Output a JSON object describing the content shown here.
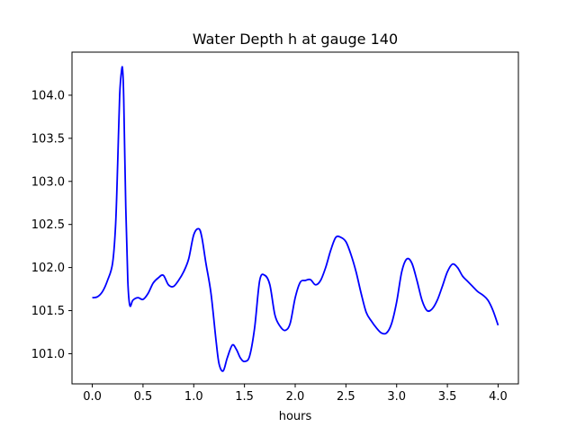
{
  "chart_data": {
    "type": "line",
    "title": "Water Depth h at gauge 140",
    "xlabel": "hours",
    "ylabel": "",
    "xlim": [
      -0.2,
      4.2
    ],
    "ylim": [
      100.65,
      104.5
    ],
    "xticks": [
      0.0,
      0.5,
      1.0,
      1.5,
      2.0,
      2.5,
      3.0,
      3.5,
      4.0
    ],
    "xtick_labels": [
      "0.0",
      "0.5",
      "1.0",
      "1.5",
      "2.0",
      "2.5",
      "3.0",
      "3.5",
      "4.0"
    ],
    "yticks": [
      101.0,
      101.5,
      102.0,
      102.5,
      103.0,
      103.5,
      104.0
    ],
    "ytick_labels": [
      "101.0",
      "101.5",
      "102.0",
      "102.5",
      "103.0",
      "103.5",
      "104.0"
    ],
    "grid": false,
    "series": [
      {
        "color": "#0000ff",
        "x": [
          0.0,
          0.05,
          0.1,
          0.15,
          0.2,
          0.23,
          0.25,
          0.27,
          0.29,
          0.3,
          0.31,
          0.33,
          0.35,
          0.37,
          0.4,
          0.45,
          0.5,
          0.55,
          0.6,
          0.65,
          0.7,
          0.75,
          0.8,
          0.85,
          0.9,
          0.95,
          1.0,
          1.05,
          1.08,
          1.12,
          1.17,
          1.22,
          1.25,
          1.29,
          1.33,
          1.38,
          1.42,
          1.46,
          1.5,
          1.55,
          1.6,
          1.65,
          1.7,
          1.75,
          1.8,
          1.85,
          1.9,
          1.95,
          2.0,
          2.05,
          2.1,
          2.15,
          2.2,
          2.25,
          2.3,
          2.35,
          2.4,
          2.45,
          2.5,
          2.55,
          2.6,
          2.65,
          2.7,
          2.75,
          2.8,
          2.85,
          2.9,
          2.95,
          3.0,
          3.05,
          3.1,
          3.15,
          3.2,
          3.25,
          3.3,
          3.35,
          3.4,
          3.45,
          3.5,
          3.55,
          3.6,
          3.65,
          3.7,
          3.75,
          3.8,
          3.85,
          3.9,
          3.95,
          4.0
        ],
        "y": [
          101.65,
          101.66,
          101.72,
          101.85,
          102.05,
          102.5,
          103.2,
          104.0,
          104.3,
          104.28,
          103.95,
          102.7,
          101.85,
          101.56,
          101.62,
          101.65,
          101.63,
          101.7,
          101.82,
          101.88,
          101.91,
          101.8,
          101.78,
          101.85,
          101.95,
          102.1,
          102.38,
          102.45,
          102.35,
          102.05,
          101.7,
          101.15,
          100.88,
          100.8,
          100.95,
          101.1,
          101.05,
          100.95,
          100.91,
          100.97,
          101.3,
          101.85,
          101.91,
          101.8,
          101.45,
          101.32,
          101.27,
          101.35,
          101.65,
          101.83,
          101.85,
          101.86,
          101.8,
          101.85,
          102.0,
          102.2,
          102.35,
          102.35,
          102.3,
          102.15,
          101.95,
          101.7,
          101.48,
          101.38,
          101.3,
          101.24,
          101.24,
          101.35,
          101.6,
          101.95,
          102.1,
          102.05,
          101.85,
          101.62,
          101.5,
          101.52,
          101.62,
          101.78,
          101.95,
          102.04,
          102.0,
          101.9,
          101.84,
          101.78,
          101.72,
          101.68,
          101.62,
          101.5,
          101.33
        ]
      }
    ]
  }
}
